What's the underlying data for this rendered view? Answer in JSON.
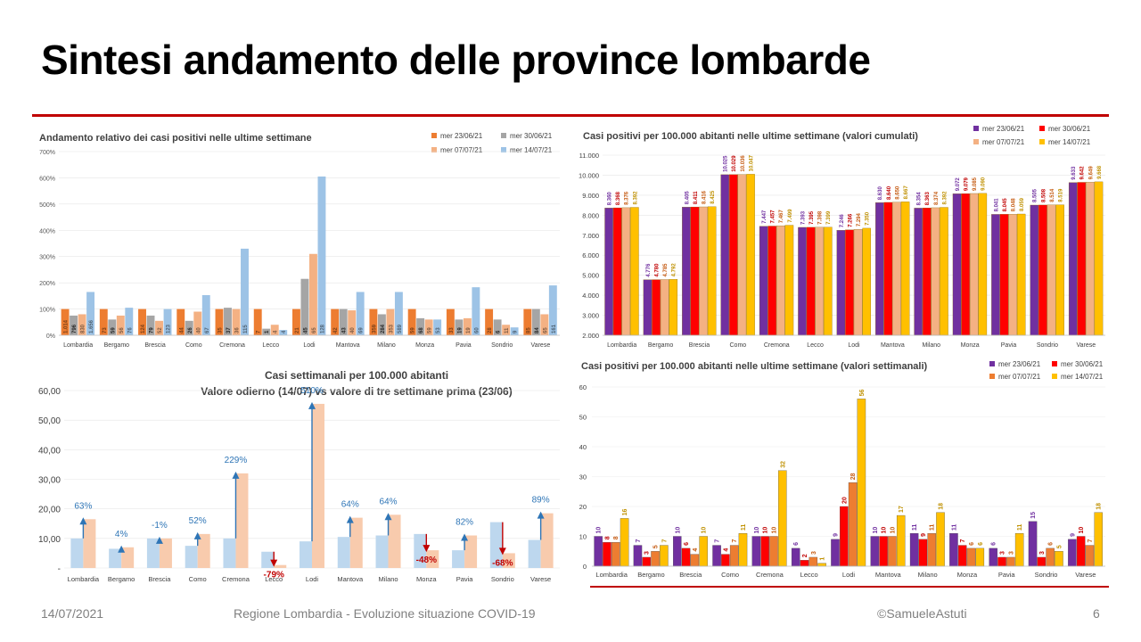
{
  "slide": {
    "title": "Sintesi andamento delle province lombarde",
    "footer_date": "14/07/2021",
    "footer_center": "Regione Lombardia - Evoluzione situazione COVID-19",
    "footer_author": "©SamueleAstuti",
    "footer_page": "6"
  },
  "colors": {
    "rule": "#c00000"
  },
  "chart_data": [
    {
      "id": "relative",
      "type": "bar",
      "title": "Andamento relativo dei casi positivi nelle ultime settimane",
      "categories": [
        "Lombardia",
        "Bergamo",
        "Brescia",
        "Como",
        "Cremona",
        "Lecco",
        "Lodi",
        "Mantova",
        "Milano",
        "Monza",
        "Pavia",
        "Sondrio",
        "Varese"
      ],
      "ylim": [
        0,
        700
      ],
      "yticks": [
        "0%",
        "100%",
        "200%",
        "300%",
        "400%",
        "500%",
        "600%",
        "700%"
      ],
      "series": [
        {
          "name": "mer 23/06/21",
          "color": "#ed7d31",
          "values": [
            100,
            100,
            100,
            100,
            100,
            100,
            100,
            100,
            100,
            100,
            100,
            100,
            100
          ]
        },
        {
          "name": "mer 30/06/21",
          "color": "#a5a5a5",
          "values": [
            75,
            60,
            75,
            55,
            105,
            25,
            215,
            100,
            80,
            65,
            60,
            60,
            100
          ]
        },
        {
          "name": "mer 07/07/21",
          "color": "#f4b183",
          "values": [
            80,
            75,
            55,
            90,
            100,
            40,
            310,
            95,
            100,
            60,
            65,
            40,
            80
          ]
        },
        {
          "name": "mer 14/07/21",
          "color": "#9dc3e6",
          "values": [
            165,
            105,
            100,
            153,
            330,
            20,
            605,
            165,
            165,
            60,
            183,
            30,
            190
          ]
        }
      ],
      "data_labels": [
        [
          "1.014",
          "796",
          "830",
          "1.656"
        ],
        [
          "73",
          "59",
          "56",
          "76"
        ],
        [
          "124",
          "79",
          "52",
          "123"
        ],
        [
          "44",
          "26",
          "40",
          "67"
        ],
        [
          "35",
          "37",
          "36",
          "115"
        ],
        [
          "7",
          "1",
          "4",
          "4"
        ],
        [
          "21",
          "45",
          "65",
          "128"
        ],
        [
          "42",
          "43",
          "40",
          "69"
        ],
        [
          "359",
          "284",
          "353",
          "589"
        ],
        [
          "59",
          "68",
          "59",
          "53"
        ],
        [
          "33",
          "19",
          "19",
          "60"
        ],
        [
          "28",
          "6",
          "11",
          "9"
        ],
        [
          "85",
          "84",
          "65",
          "161"
        ]
      ],
      "legend_placement": "top-right"
    },
    {
      "id": "cumulative",
      "type": "bar",
      "title": "Casi positivi per 100.000 abitanti nelle ultime settimane (valori cumulati)",
      "categories": [
        "Lombardia",
        "Bergamo",
        "Brescia",
        "Como",
        "Cremona",
        "Lecco",
        "Lodi",
        "Mantova",
        "Milano",
        "Monza",
        "Pavia",
        "Sondrio",
        "Varese"
      ],
      "ylim": [
        2000,
        11000
      ],
      "yticks": [
        "2.000",
        "3.000",
        "4.000",
        "5.000",
        "6.000",
        "7.000",
        "8.000",
        "9.000",
        "10.000",
        "11.000"
      ],
      "series": [
        {
          "name": "mer 23/06/21",
          "color": "#7030a0",
          "values": [
            8360,
            4776,
            8405,
            10025,
            7447,
            7393,
            7246,
            8630,
            8354,
            9072,
            8041,
            8505,
            9633
          ]
        },
        {
          "name": "mer 30/06/21",
          "color": "#ff0000",
          "values": [
            8368,
            4780,
            8411,
            10029,
            7457,
            7395,
            7266,
            8640,
            8363,
            9079,
            8045,
            8508,
            9642
          ]
        },
        {
          "name": "mer 07/07/21",
          "color": "#f4b183",
          "values": [
            8376,
            4785,
            8416,
            10036,
            7467,
            7398,
            7294,
            8650,
            8374,
            9085,
            8048,
            8514,
            9649
          ]
        },
        {
          "name": "mer 14/07/21",
          "color": "#ffc000",
          "values": [
            8392,
            4792,
            8425,
            10047,
            7499,
            7399,
            7350,
            8667,
            8392,
            9090,
            8059,
            8519,
            9668
          ]
        }
      ],
      "data_labels": [
        [
          "8.360",
          "8.368",
          "8.376",
          "8.392"
        ],
        [
          "4.776",
          "4.780",
          "4.785",
          "4.792"
        ],
        [
          "8.405",
          "8.411",
          "8.416",
          "8.425"
        ],
        [
          "10.025",
          "10.029",
          "10.036",
          "10.047"
        ],
        [
          "7.447",
          "7.457",
          "7.467",
          "7.499"
        ],
        [
          "7.393",
          "7.395",
          "7.398",
          "7.399"
        ],
        [
          "7.246",
          "7.266",
          "7.294",
          "7.350"
        ],
        [
          "8.630",
          "8.640",
          "8.650",
          "8.667"
        ],
        [
          "8.354",
          "8.363",
          "8.374",
          "8.392"
        ],
        [
          "9.072",
          "9.079",
          "9.085",
          "9.090"
        ],
        [
          "8.041",
          "8.045",
          "8.048",
          "8.059"
        ],
        [
          "8.505",
          "8.508",
          "8.514",
          "8.519"
        ],
        [
          "9.633",
          "9.642",
          "9.649",
          "9.668"
        ]
      ],
      "legend_placement": "top-right"
    },
    {
      "id": "weekly",
      "type": "bar",
      "title": "Casi settimanali per 100.000 abitanti",
      "subtitle": "Valore odierno (14/07) vs valore di tre settimane prima (23/06)",
      "categories": [
        "Lombardia",
        "Bergamo",
        "Brescia",
        "Como",
        "Cremona",
        "Lecco",
        "Lodi",
        "Mantova",
        "Milano",
        "Monza",
        "Pavia",
        "Sondrio",
        "Varese"
      ],
      "ylim": [
        0,
        60
      ],
      "yticks": [
        "-",
        "10,00",
        "20,00",
        "30,00",
        "40,00",
        "50,00",
        "60,00"
      ],
      "series": [
        {
          "name": "23/06",
          "color": "#bdd7ee",
          "values": [
            10,
            6.5,
            10,
            7.5,
            10,
            5.5,
            9,
            10.5,
            11,
            11.5,
            6,
            15.5,
            9.5
          ]
        },
        {
          "name": "14/07",
          "color": "#f8cbad",
          "values": [
            16.5,
            7,
            10,
            11.5,
            32,
            1,
            55.5,
            17,
            18,
            6,
            11,
            5,
            18.5
          ]
        }
      ],
      "pct_change": [
        "63%",
        "4%",
        "-1%",
        "52%",
        "229%",
        "-79%",
        "510%",
        "64%",
        "64%",
        "-48%",
        "82%",
        "-68%",
        "89%"
      ],
      "pct_color": {
        "up": "#2e75b6",
        "down": "#c00000"
      }
    },
    {
      "id": "weekly4",
      "type": "bar",
      "title": "Casi positivi per 100.000 abitanti nelle ultime settimane (valori settimanali)",
      "categories": [
        "Lombardia",
        "Bergamo",
        "Brescia",
        "Como",
        "Cremona",
        "Lecco",
        "Lodi",
        "Mantova",
        "Milano",
        "Monza",
        "Pavia",
        "Sondrio",
        "Varese"
      ],
      "ylim": [
        0,
        60
      ],
      "yticks": [
        "0",
        "10",
        "20",
        "30",
        "40",
        "50",
        "60"
      ],
      "series": [
        {
          "name": "mer 23/06/21",
          "color": "#7030a0",
          "values": [
            10,
            7,
            10,
            7,
            10,
            6,
            9,
            10,
            11,
            11,
            6,
            15,
            9
          ]
        },
        {
          "name": "mer 30/06/21",
          "color": "#ff0000",
          "values": [
            8,
            3,
            6,
            4,
            10,
            2,
            20,
            10,
            9,
            7,
            3,
            3,
            10
          ]
        },
        {
          "name": "mer 07/07/21",
          "color": "#ed7d31",
          "values": [
            8,
            5,
            4,
            7,
            10,
            3,
            28,
            10,
            11,
            6,
            3,
            6,
            7
          ]
        },
        {
          "name": "mer 14/07/21",
          "color": "#ffc000",
          "values": [
            16,
            7,
            10,
            11,
            32,
            1,
            56,
            17,
            18,
            6,
            11,
            5,
            18
          ]
        }
      ],
      "data_labels": [
        [
          "10",
          "8",
          "8",
          "16"
        ],
        [
          "7",
          "3",
          "5",
          "7"
        ],
        [
          "10",
          "6",
          "4",
          "10"
        ],
        [
          "7",
          "4",
          "7",
          "11"
        ],
        [
          "10",
          "10",
          "10",
          "32"
        ],
        [
          "6",
          "2",
          "3",
          "1"
        ],
        [
          "9",
          "20",
          "28",
          "56"
        ],
        [
          "10",
          "10",
          "10",
          "17"
        ],
        [
          "11",
          "9",
          "11",
          "18"
        ],
        [
          "11",
          "7",
          "6",
          "6"
        ],
        [
          "6",
          "3",
          "3",
          "11"
        ],
        [
          "15",
          "3",
          "6",
          "5"
        ],
        [
          "9",
          "10",
          "7",
          "18"
        ]
      ],
      "legend_placement": "top-right"
    }
  ]
}
